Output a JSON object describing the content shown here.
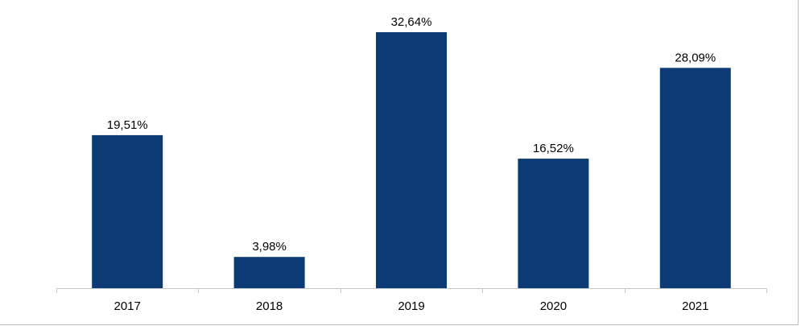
{
  "chart_data": {
    "type": "bar",
    "title": "",
    "xlabel": "",
    "ylabel": "",
    "categories": [
      "2017",
      "2018",
      "2019",
      "2020",
      "2021"
    ],
    "values": [
      19.51,
      3.98,
      32.64,
      16.52,
      28.09
    ],
    "value_labels": [
      "19,51%",
      "3,98%",
      "32,64%",
      "16,52%",
      "28,09%"
    ],
    "ylim": [
      0,
      35
    ],
    "grid": false,
    "legend": "none",
    "colors": {
      "bar": "#0c3a74",
      "axis": "#c8c8c8"
    }
  }
}
